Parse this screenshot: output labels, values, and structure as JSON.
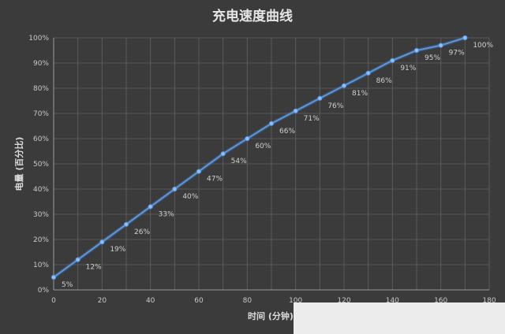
{
  "chart_data": {
    "type": "line",
    "title": "充电速度曲线",
    "xlabel": "时间 (分钟)",
    "ylabel": "电量 (百分比)",
    "x": [
      0,
      10,
      20,
      30,
      40,
      50,
      60,
      70,
      80,
      90,
      100,
      110,
      120,
      130,
      140,
      150,
      160,
      170
    ],
    "xlim": [
      0,
      180
    ],
    "xticks": [
      0,
      20,
      40,
      60,
      80,
      100,
      120,
      140,
      160,
      180
    ],
    "ylim": [
      0,
      100
    ],
    "yticks": [
      "0%",
      "10%",
      "20%",
      "30%",
      "40%",
      "50%",
      "60%",
      "70%",
      "80%",
      "90%",
      "100%"
    ],
    "grid": true,
    "series": [
      {
        "values": [
          5,
          12,
          19,
          26,
          33,
          40,
          47,
          54,
          60,
          66,
          71,
          76,
          81,
          86,
          91,
          95,
          97,
          100
        ],
        "labels": [
          "5%",
          "12%",
          "19%",
          "26%",
          "33%",
          "40%",
          "47%",
          "54%",
          "60%",
          "66%",
          "71%",
          "76%",
          "81%",
          "86%",
          "91%",
          "95%",
          "97%",
          "100%"
        ],
        "color": "#5b95d8"
      }
    ]
  }
}
